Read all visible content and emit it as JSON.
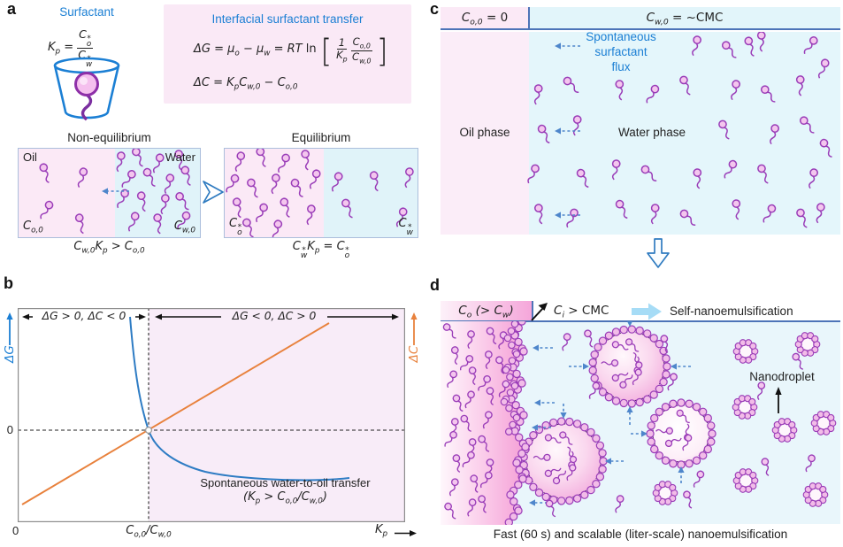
{
  "colors": {
    "accent_blue": "#1B7FD4",
    "line_blue": "#4D74B8",
    "flux_blue": "#4E86CB",
    "dg_blue": "#2E7CC4",
    "dc_orange": "#E8813C",
    "molecule_stroke": "#9A3DB8",
    "molecule_head": "#F4C6EE",
    "bead_fill": "#F2BCE8",
    "oil_pink_light": "#FBE9F6",
    "water_cyan": "#E2F5FA",
    "plot_pink": "#F8ECF8",
    "oil_gradient_deep": "#F59FD6"
  },
  "panels": {
    "a": {
      "letter": "a",
      "surfactant_label": "Surfactant",
      "kp_def": {
        "lhs": "K_{p} =",
        "num": "C%{*}{o}",
        "den": "C%{*}{w}"
      },
      "transfer_box": {
        "title": "Interfacial surfactant transfer",
        "eq_dg_lhs": "ΔG = μ_{o} − μ_{w} = RT !{ln}",
        "eq_dg_f1_num": "1",
        "eq_dg_f1_den": "K_{p}",
        "eq_dg_f2_num": "C_{o,0}",
        "eq_dg_f2_den": "C_{w,0}",
        "eq_dc": "ΔC = K_{p}C_{w,0} − C_{o,0}"
      },
      "nonequilibrium": {
        "title": "Non-equilibrium",
        "oil_label": "Oil",
        "water_label": "Water",
        "oil_conc": "C_{o,0}",
        "water_conc": "C_{w,0}",
        "caption": "C_{w,0}K_{p} > C_{o,0}"
      },
      "equilibrium": {
        "title": "Equilibrium",
        "oil_conc": "C%{*}{o}",
        "water_conc": "C%{*}{w}",
        "caption": "C%{*}{w}K_{p} = C%{*}{o}"
      }
    },
    "b": {
      "letter": "b",
      "region_left_label": "ΔG > 0, ΔC < 0",
      "region_right_label": "ΔG < 0, ΔC > 0",
      "y_left": "ΔG",
      "y_right": "ΔC",
      "y_zero": "0",
      "x_zero": "0",
      "x_threshold": "C_{o,0}/C_{w,0}",
      "x_label": "K_{p}",
      "note_line1": "Spontaneous water-to-oil transfer",
      "note_line2": "(K_{p} > C_{o,0}/C_{w,0})"
    },
    "c": {
      "letter": "c",
      "header_oil": "C_{o,0} = !{0}",
      "header_water": "C_{w,0} = ~!{CMC}",
      "flux_line1": "Spontaneous",
      "flux_line2": "surfactant",
      "flux_line3": "flux",
      "oil_phase": "Oil phase",
      "water_phase": "Water phase"
    },
    "d": {
      "letter": "d",
      "header_oil": "C_{o} (> C_{w})",
      "interface_conc": "C_{i} > !{CMC}",
      "process": "Self-nanoemulsification",
      "nanodroplet": "Nanodroplet",
      "caption": "Fast (60 s) and scalable (liter-scale) nanoemulsification"
    }
  },
  "chart_data": {
    "type": "line",
    "xlabel": "K_p",
    "ylabel_left": "ΔG",
    "ylabel_right": "ΔC",
    "x_range_normalized": [
      0,
      6
    ],
    "zero_crossing_x": "C_o,0/C_w,0 (normalized K_p = 1)",
    "grid": false,
    "values_are_illustrative": true,
    "series": [
      {
        "name": "ΔG",
        "color": "#2E7CC4",
        "relation": "ΔG = RT ln[(1/K_p)(C_o,0/C_w,0)]",
        "behavior": "monotonically decreasing; +∞ as K_p→0; crosses 0 at K_p = C_o,0/C_w,0",
        "x": [
          0.55,
          0.6,
          0.7,
          0.85,
          1.0,
          1.3,
          1.8,
          2.5,
          3.5,
          4.5,
          5.4
        ],
        "y_RT_units": [
          2.2,
          1.6,
          1.05,
          0.55,
          0,
          -0.45,
          -0.8,
          -1.1,
          -1.35,
          -1.5,
          -1.6
        ]
      },
      {
        "name": "ΔC",
        "color": "#E8813C",
        "relation": "ΔC = K_p·C_w,0 − C_o,0",
        "behavior": "linear increasing; crosses 0 at K_p = C_o,0/C_w,0",
        "x": [
          0.06,
          1.0,
          5.7
        ],
        "y_Cw0_units": [
          -0.94,
          0,
          4.7
        ]
      }
    ],
    "regions": [
      {
        "label": "ΔG > 0, ΔC < 0",
        "x_range": "K_p < C_o,0/C_w,0",
        "background": "#FFFFFF"
      },
      {
        "label": "ΔG < 0, ΔC > 0",
        "x_range": "K_p > C_o,0/C_w,0",
        "background": "#F8ECF8"
      }
    ],
    "x_ticks": [
      "0",
      "C_o,0/C_w,0"
    ],
    "y_ticks": [
      "0"
    ]
  }
}
